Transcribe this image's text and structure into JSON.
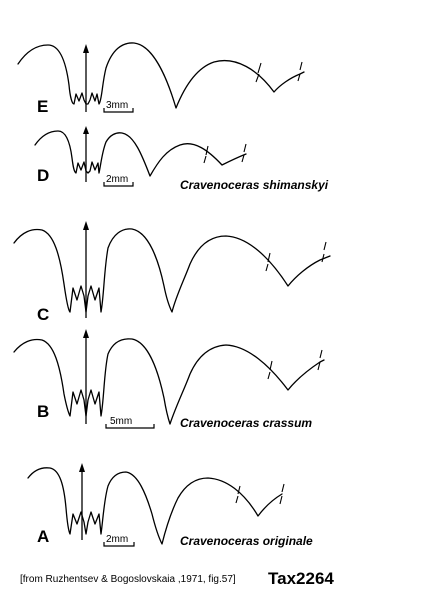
{
  "panels": [
    {
      "letter": "E",
      "scale": "3mm",
      "species": ""
    },
    {
      "letter": "D",
      "scale": "2mm",
      "species": "Cravenoceras shimanskyi"
    },
    {
      "letter": "C",
      "scale": "",
      "species": ""
    },
    {
      "letter": "B",
      "scale": "5mm",
      "species": "Cravenoceras crassum"
    },
    {
      "letter": "A",
      "scale": "2mm",
      "species": "Cravenoceras originale"
    }
  ],
  "citation": "[from Ruzhentsev & Bogoslovskaia ,1971, fig.57]",
  "tax_id": "Tax2264"
}
